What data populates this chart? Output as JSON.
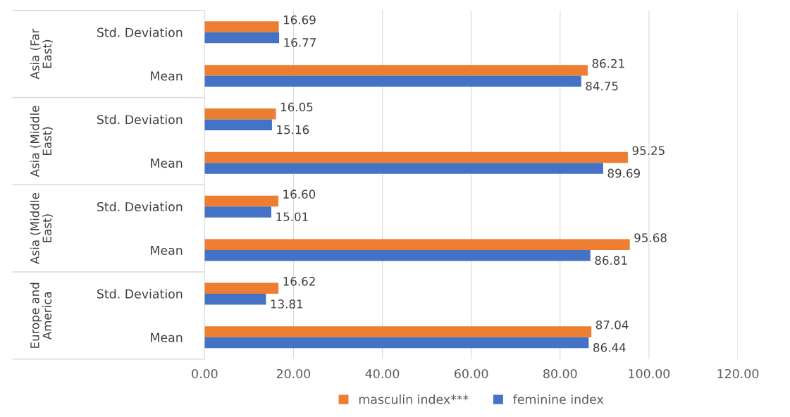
{
  "chart_data": {
    "type": "bar",
    "orientation": "horizontal",
    "categories": [
      "Std. Deviation",
      "Mean",
      "Std. Deviation",
      "Mean",
      "Std. Deviation",
      "Mean",
      "Std. Deviation",
      "Mean"
    ],
    "annotations": [
      "Asia (Far East)",
      "Asia (Middle East)",
      "Asia (Middle East)",
      "Europe and America"
    ],
    "series": [
      {
        "name": "masculin index***",
        "color": "#ed7d31",
        "values": [
          16.69,
          86.21,
          16.05,
          95.25,
          16.6,
          95.68,
          16.62,
          87.04
        ],
        "value_labels": [
          "16.69",
          "86.21",
          "16.05",
          "95.25",
          "16.60",
          "95.68",
          "16.62",
          "87.04"
        ]
      },
      {
        "name": "feminine index",
        "color": "#4472c4",
        "values": [
          16.77,
          84.75,
          15.16,
          89.69,
          15.01,
          86.81,
          13.81,
          86.44
        ],
        "value_labels": [
          "16.77",
          "84.75",
          "15.16",
          "89.69",
          "15.01",
          "86.81",
          "13.81",
          "86.44"
        ]
      }
    ],
    "xlim": [
      0,
      120
    ],
    "xticks": [
      {
        "value": 0,
        "label": "0.00"
      },
      {
        "value": 20,
        "label": "20.00"
      },
      {
        "value": 40,
        "label": "40.00"
      },
      {
        "value": 60,
        "label": "60.00"
      },
      {
        "value": 80,
        "label": "80.00"
      },
      {
        "value": 100,
        "label": "100.00"
      },
      {
        "value": 120,
        "label": "120.00"
      }
    ],
    "grid": "x",
    "legend": "bottom"
  }
}
